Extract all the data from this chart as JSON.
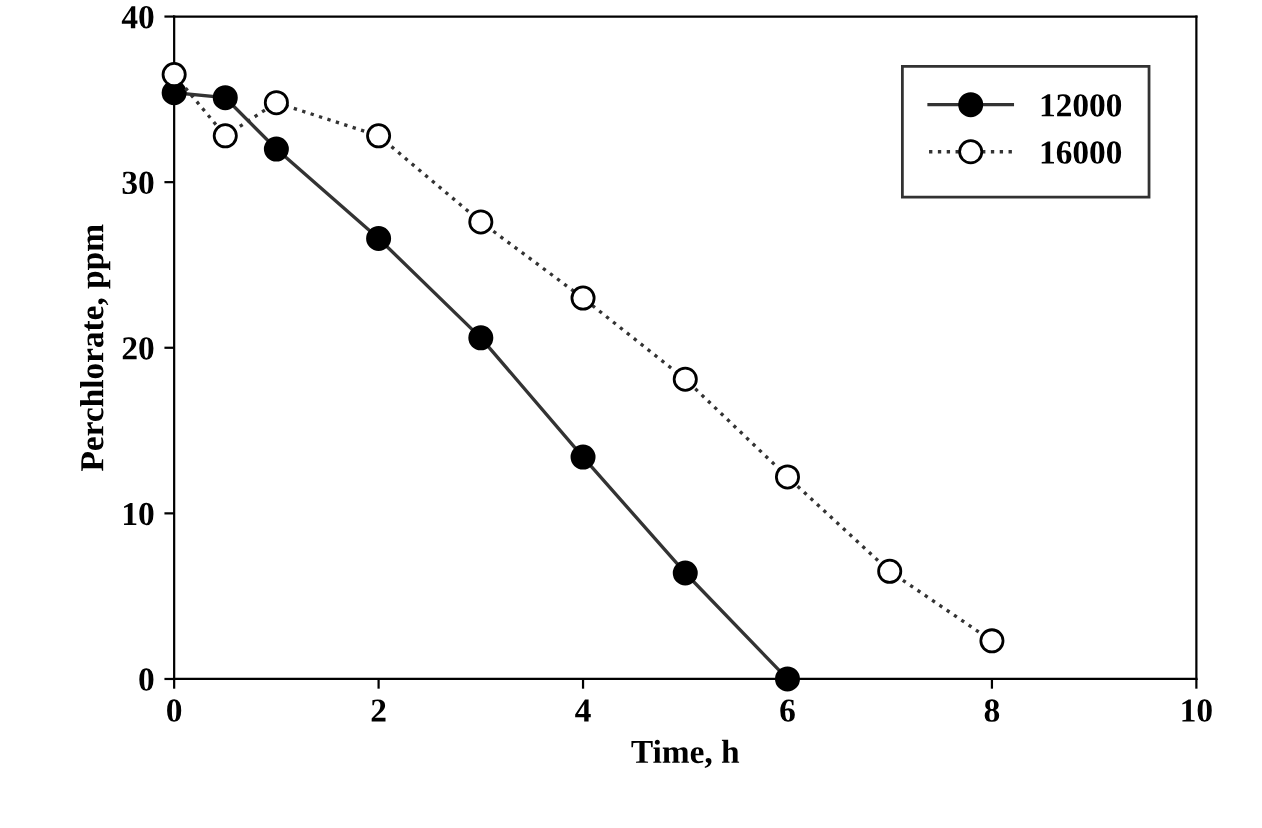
{
  "chart_data": {
    "type": "line",
    "xlabel": "Time, h",
    "ylabel": "Perchlorate, ppm",
    "xlim": [
      0,
      10
    ],
    "xticks": [
      0,
      2,
      4,
      6,
      8,
      10
    ],
    "ylim": [
      0,
      40
    ],
    "yticks": [
      0,
      10,
      20,
      30,
      40
    ],
    "grid": false,
    "legend": "top right",
    "marker": "circle",
    "series": [
      {
        "name": "12000",
        "color": "#000000",
        "line_style": "solid",
        "x": [
          0,
          0.5,
          1,
          2,
          3,
          4,
          5,
          6
        ],
        "values": [
          35.4,
          35.1,
          32.0,
          26.6,
          20.6,
          13.4,
          6.4,
          0
        ]
      },
      {
        "name": "16000",
        "color": "#ffffff",
        "line_style": "dotted",
        "x": [
          0,
          0.5,
          1,
          2,
          3,
          4,
          5,
          6,
          7,
          8
        ],
        "values": [
          36.5,
          32.8,
          34.8,
          32.8,
          27.6,
          23.0,
          18.1,
          12.2,
          6.5,
          2.3
        ]
      }
    ]
  }
}
